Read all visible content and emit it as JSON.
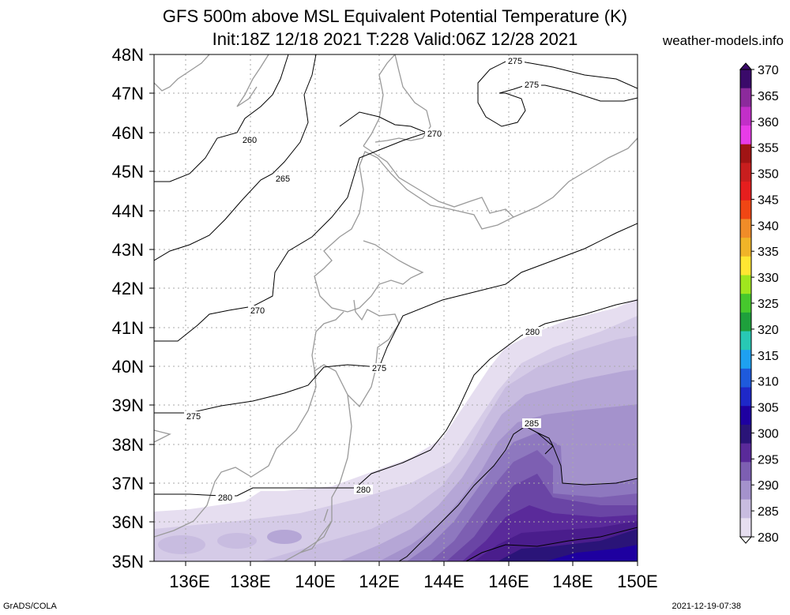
{
  "header": {
    "title_line1": "GFS 500m above MSL Equivalent Potential Temperature (K)",
    "title_line2": "Init:18Z 12/18 2021 T:228 Valid:06Z 12/28 2021",
    "site": "weather-models.info"
  },
  "footer": {
    "left": "GrADS/COLA",
    "right": "2021-12-19-07:38"
  },
  "map": {
    "lat_labels": [
      "48N",
      "47N",
      "46N",
      "45N",
      "44N",
      "43N",
      "42N",
      "41N",
      "40N",
      "39N",
      "38N",
      "37N",
      "36N",
      "35N"
    ],
    "lon_labels": [
      "136E",
      "138E",
      "140E",
      "142E",
      "144E",
      "146E",
      "148E",
      "150E"
    ],
    "contour_labels": [
      {
        "text": "275"
      },
      {
        "text": "275"
      },
      {
        "text": "270"
      },
      {
        "text": "260"
      },
      {
        "text": "265"
      },
      {
        "text": "270"
      },
      {
        "text": "280"
      },
      {
        "text": "275"
      },
      {
        "text": "275"
      },
      {
        "text": "285"
      },
      {
        "text": "280"
      },
      {
        "text": "280"
      }
    ]
  },
  "colorbar": {
    "labels": [
      "370",
      "365",
      "360",
      "355",
      "350",
      "345",
      "340",
      "335",
      "330",
      "325",
      "320",
      "315",
      "310",
      "305",
      "300",
      "295",
      "290",
      "285",
      "280"
    ],
    "colors": [
      "#3a0a6a",
      "#8c2a9c",
      "#c22fc8",
      "#e83ce8",
      "#a01414",
      "#c81e1e",
      "#e61e1e",
      "#f04614",
      "#f08c28",
      "#f0b428",
      "#ffe632",
      "#a0e61e",
      "#46c82d",
      "#1ea03c",
      "#28c8b4",
      "#1ea0f0",
      "#1e5adc",
      "#1e28c8",
      "#1e00a0",
      "#2a1478",
      "#5a2a9a",
      "#7d5fb2",
      "#a492cc",
      "#c8bce0",
      "#e6def0"
    ]
  }
}
